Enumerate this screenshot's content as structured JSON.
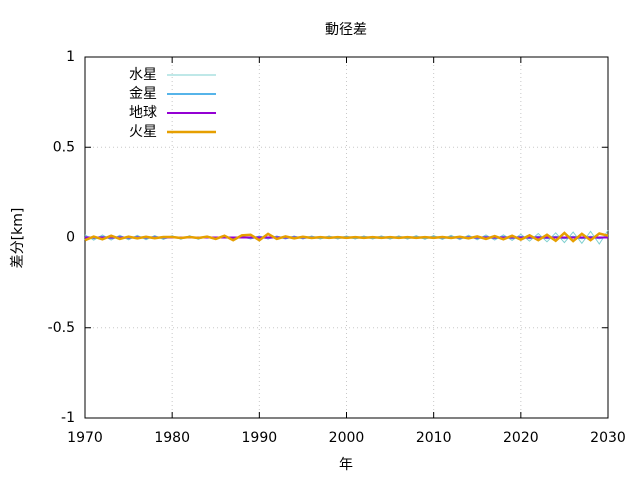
{
  "chart_data": {
    "type": "line",
    "title": "動径差",
    "x_label": "年",
    "y_label": "差分[km]",
    "x": [
      1970,
      1971,
      1972,
      1973,
      1974,
      1975,
      1976,
      1977,
      1978,
      1979,
      1980,
      1981,
      1982,
      1983,
      1984,
      1985,
      1986,
      1987,
      1988,
      1989,
      1990,
      1991,
      1992,
      1993,
      1994,
      1995,
      1996,
      1997,
      1998,
      1999,
      2000,
      2001,
      2002,
      2003,
      2004,
      2005,
      2006,
      2007,
      2008,
      2009,
      2010,
      2011,
      2012,
      2013,
      2014,
      2015,
      2016,
      2017,
      2018,
      2019,
      2020,
      2021,
      2022,
      2023,
      2024,
      2025,
      2026,
      2027,
      2028,
      2029,
      2030
    ],
    "series": [
      {
        "name": "水星",
        "color": "#7fd0d0",
        "width": 1,
        "values": [
          0.015,
          -0.015,
          0.014,
          -0.014,
          0.013,
          -0.013,
          0.012,
          -0.012,
          0.011,
          -0.011,
          0.01,
          -0.01,
          0.01,
          -0.01,
          0.009,
          -0.009,
          0.009,
          -0.009,
          0.008,
          -0.008,
          0.008,
          -0.008,
          0.008,
          -0.008,
          0.008,
          -0.008,
          0.008,
          -0.008,
          0.008,
          -0.008,
          0.008,
          -0.008,
          0.008,
          -0.008,
          0.009,
          -0.009,
          0.009,
          -0.009,
          0.01,
          -0.01,
          0.011,
          -0.011,
          0.012,
          -0.012,
          0.013,
          -0.013,
          0.014,
          -0.014,
          0.015,
          -0.016,
          0.018,
          -0.02,
          0.022,
          -0.024,
          0.026,
          -0.028,
          0.03,
          -0.032,
          0.034,
          -0.036,
          0.04
        ]
      },
      {
        "name": "金星",
        "color": "#56b4e9",
        "width": 2,
        "values": [
          0.004,
          -0.004,
          0.004,
          -0.004,
          0.004,
          -0.004,
          0.004,
          -0.004,
          0.004,
          -0.004,
          0.004,
          -0.004,
          0.004,
          -0.004,
          0.004,
          -0.004,
          0.004,
          -0.004,
          0.004,
          -0.004,
          0.004,
          -0.004,
          0.004,
          -0.004,
          0.004,
          -0.004,
          0.004,
          -0.004,
          0.004,
          -0.004,
          0.004,
          -0.004,
          0.004,
          -0.004,
          0.004,
          -0.004,
          0.004,
          -0.004,
          0.004,
          -0.004,
          0.004,
          -0.004,
          0.004,
          -0.004,
          0.004,
          -0.004,
          0.004,
          -0.004,
          0.004,
          -0.004,
          0.004,
          -0.004,
          0.004,
          -0.004,
          0.004,
          -0.004,
          0.004,
          -0.004,
          0.004,
          -0.004,
          0.004
        ]
      },
      {
        "name": "地球",
        "color": "#9400d3",
        "width": 2,
        "values": [
          0,
          0,
          0,
          0,
          0,
          0,
          0,
          0,
          0,
          0,
          0,
          0,
          0,
          0,
          0,
          0,
          0,
          0,
          0,
          0,
          0,
          0,
          0,
          0,
          0,
          0,
          0,
          0,
          0,
          0,
          0,
          0,
          0,
          0,
          0,
          0,
          0,
          0,
          0,
          0,
          0,
          0,
          0,
          0,
          0,
          0,
          0,
          0,
          0,
          0,
          0,
          0,
          0,
          0,
          0,
          0,
          0,
          0,
          0,
          0,
          0
        ]
      },
      {
        "name": "火星",
        "color": "#e69f00",
        "width": 2.5,
        "values": [
          -0.015,
          0.005,
          -0.01,
          0.01,
          -0.008,
          0.005,
          -0.005,
          0.004,
          -0.004,
          0.003,
          0.003,
          -0.003,
          0.003,
          -0.003,
          0.005,
          -0.008,
          0.01,
          -0.015,
          0.012,
          0.015,
          -0.015,
          0.02,
          -0.008,
          0.006,
          -0.005,
          0.004,
          -0.003,
          0.002,
          -0.002,
          0.002,
          -0.002,
          0.002,
          -0.002,
          0.002,
          -0.002,
          0.002,
          -0.002,
          0.002,
          -0.002,
          0.002,
          -0.002,
          0.003,
          -0.003,
          0.004,
          -0.005,
          0.006,
          -0.008,
          0.008,
          -0.01,
          0.01,
          -0.012,
          0.012,
          -0.015,
          0.015,
          -0.018,
          0.025,
          -0.02,
          0.02,
          -0.015,
          0.022,
          0.01
        ]
      }
    ],
    "xlim": [
      1970,
      2030
    ],
    "xticks": [
      1970,
      1980,
      1990,
      2000,
      2010,
      2020,
      2030
    ],
    "ylim": [
      -1,
      1
    ],
    "yticks": [
      -1,
      -0.5,
      0,
      0.5,
      1
    ],
    "grid": true,
    "legend": "top-left"
  }
}
